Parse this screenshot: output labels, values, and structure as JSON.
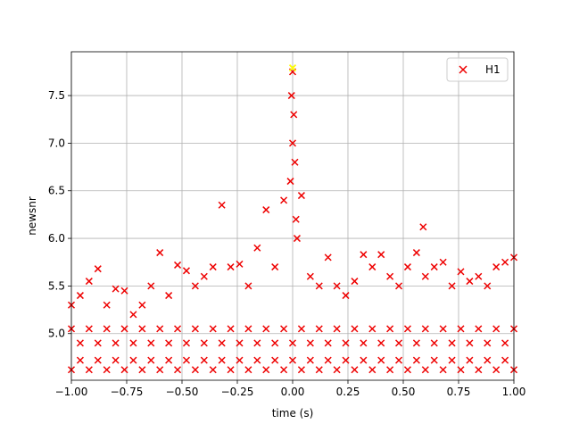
{
  "chart_data": {
    "type": "scatter",
    "xlabel": "time (s)",
    "ylabel": "newsnr",
    "xlim": [
      -1,
      1
    ],
    "ylim": [
      4.51,
      7.96
    ],
    "xticks": [
      {
        "value": -1,
        "label": "−1.00"
      },
      {
        "value": -0.75,
        "label": "−0.75"
      },
      {
        "value": -0.5,
        "label": "−0.50"
      },
      {
        "value": -0.25,
        "label": "−0.25"
      },
      {
        "value": 0,
        "label": "0.00"
      },
      {
        "value": 0.25,
        "label": "0.25"
      },
      {
        "value": 0.5,
        "label": "0.50"
      },
      {
        "value": 0.75,
        "label": "0.75"
      },
      {
        "value": 1,
        "label": "1.00"
      }
    ],
    "yticks": [
      {
        "value": 5,
        "label": "5.0"
      },
      5.5,
      {
        "value": 6,
        "label": "6.0"
      },
      6.5,
      {
        "value": 7,
        "label": "7.0"
      },
      7.5
    ],
    "grid": true,
    "legend": "upper right",
    "series": [
      {
        "name": "H1",
        "color": "#ee0000",
        "x": [
          -1,
          -0.96,
          -0.92,
          -0.88,
          -0.84,
          -0.8,
          -0.76,
          -0.72,
          -0.68,
          -0.64,
          -0.6,
          -0.56,
          -0.52,
          -0.48,
          -0.44,
          -0.4,
          -0.36,
          -0.32,
          -0.28,
          -0.24,
          -0.2,
          -0.16,
          -0.12,
          -0.08,
          -0.04,
          0,
          0.04,
          0.08,
          0.12,
          0.16,
          0.2,
          0.24,
          0.28,
          0.32,
          0.36,
          0.4,
          0.44,
          0.48,
          0.52,
          0.56,
          0.6,
          0.64,
          0.68,
          0.72,
          0.76,
          0.8,
          0.84,
          0.88,
          0.92,
          0.96,
          1,
          -1,
          -0.96,
          -0.92,
          -0.88,
          -0.84,
          -0.8,
          -0.76,
          -0.72,
          -0.68,
          -0.64,
          -0.6,
          -0.56,
          -0.52,
          -0.48,
          -0.44,
          -0.4,
          -0.36,
          -0.32,
          -0.28,
          -0.24,
          -0.2,
          -0.16,
          -0.12,
          -0.08,
          -0.04,
          0,
          0.04,
          0.08,
          0.12,
          0.16,
          0.2,
          0.24,
          0.28,
          0.32,
          0.36,
          0.4,
          0.44,
          0.48,
          0.52,
          0.56,
          0.6,
          0.64,
          0.68,
          0.72,
          0.76,
          0.8,
          0.84,
          0.88,
          0.92,
          0.96,
          1,
          -1,
          -0.96,
          -0.92,
          -0.88,
          -0.84,
          -0.8,
          -0.76,
          -0.72,
          -0.68,
          -0.64,
          -0.6,
          -0.56,
          -0.52,
          -0.48,
          -0.44,
          -0.4,
          -0.36,
          -0.32,
          -0.28,
          -0.24,
          -0.2,
          -0.16,
          -0.12,
          -0.08,
          -0.04,
          0,
          0.04,
          0.08,
          0.12,
          0.16,
          0.2,
          0.24,
          0.28,
          0.32,
          0.36,
          0.4,
          0.44,
          0.48,
          0.52,
          0.56,
          0.6,
          0.64,
          0.68,
          0.72,
          0.76,
          0.8,
          0.84,
          0.88,
          0.92,
          0.96,
          1,
          -0.01,
          0,
          0.005,
          0.01,
          -0.005,
          0.015,
          0.59,
          0.02
        ],
        "y": [
          5.3,
          5.4,
          5.55,
          5.68,
          5.3,
          5.47,
          5.45,
          5.2,
          5.3,
          5.5,
          5.85,
          5.4,
          5.72,
          5.66,
          5.5,
          5.6,
          5.7,
          6.35,
          5.7,
          5.73,
          5.5,
          5.9,
          6.3,
          5.7,
          6.4,
          7.75,
          6.45,
          5.6,
          5.5,
          5.8,
          5.5,
          5.4,
          5.55,
          5.83,
          5.7,
          5.83,
          5.6,
          5.5,
          5.7,
          5.85,
          5.6,
          5.7,
          5.75,
          5.5,
          5.65,
          5.55,
          5.6,
          5.5,
          5.7,
          5.75,
          5.8,
          5.05,
          4.9,
          5.05,
          4.9,
          5.05,
          4.9,
          5.05,
          4.9,
          5.05,
          4.9,
          5.05,
          4.9,
          5.05,
          4.9,
          5.05,
          4.9,
          5.05,
          4.9,
          5.05,
          4.9,
          5.05,
          4.9,
          5.05,
          4.9,
          5.05,
          4.9,
          5.05,
          4.9,
          5.05,
          4.9,
          5.05,
          4.9,
          5.05,
          4.9,
          5.05,
          4.9,
          5.05,
          4.9,
          5.05,
          4.9,
          5.05,
          4.9,
          5.05,
          4.9,
          5.05,
          4.9,
          5.05,
          4.9,
          5.05,
          4.9,
          5.05,
          4.62,
          4.72,
          4.62,
          4.72,
          4.62,
          4.72,
          4.62,
          4.72,
          4.62,
          4.72,
          4.62,
          4.72,
          4.62,
          4.72,
          4.62,
          4.72,
          4.62,
          4.72,
          4.62,
          4.72,
          4.62,
          4.72,
          4.62,
          4.72,
          4.62,
          4.72,
          4.62,
          4.72,
          4.62,
          4.72,
          4.62,
          4.72,
          4.62,
          4.72,
          4.62,
          4.72,
          4.62,
          4.72,
          4.62,
          4.72,
          4.62,
          4.72,
          4.62,
          4.72,
          4.62,
          4.72,
          4.62,
          4.72,
          4.62,
          4.72,
          4.62,
          6.6,
          7.0,
          7.3,
          6.8,
          7.5,
          6.2,
          6.12,
          6.0
        ]
      }
    ],
    "highlight": {
      "x": 0,
      "y": 7.79,
      "color": "#ffff00"
    }
  }
}
